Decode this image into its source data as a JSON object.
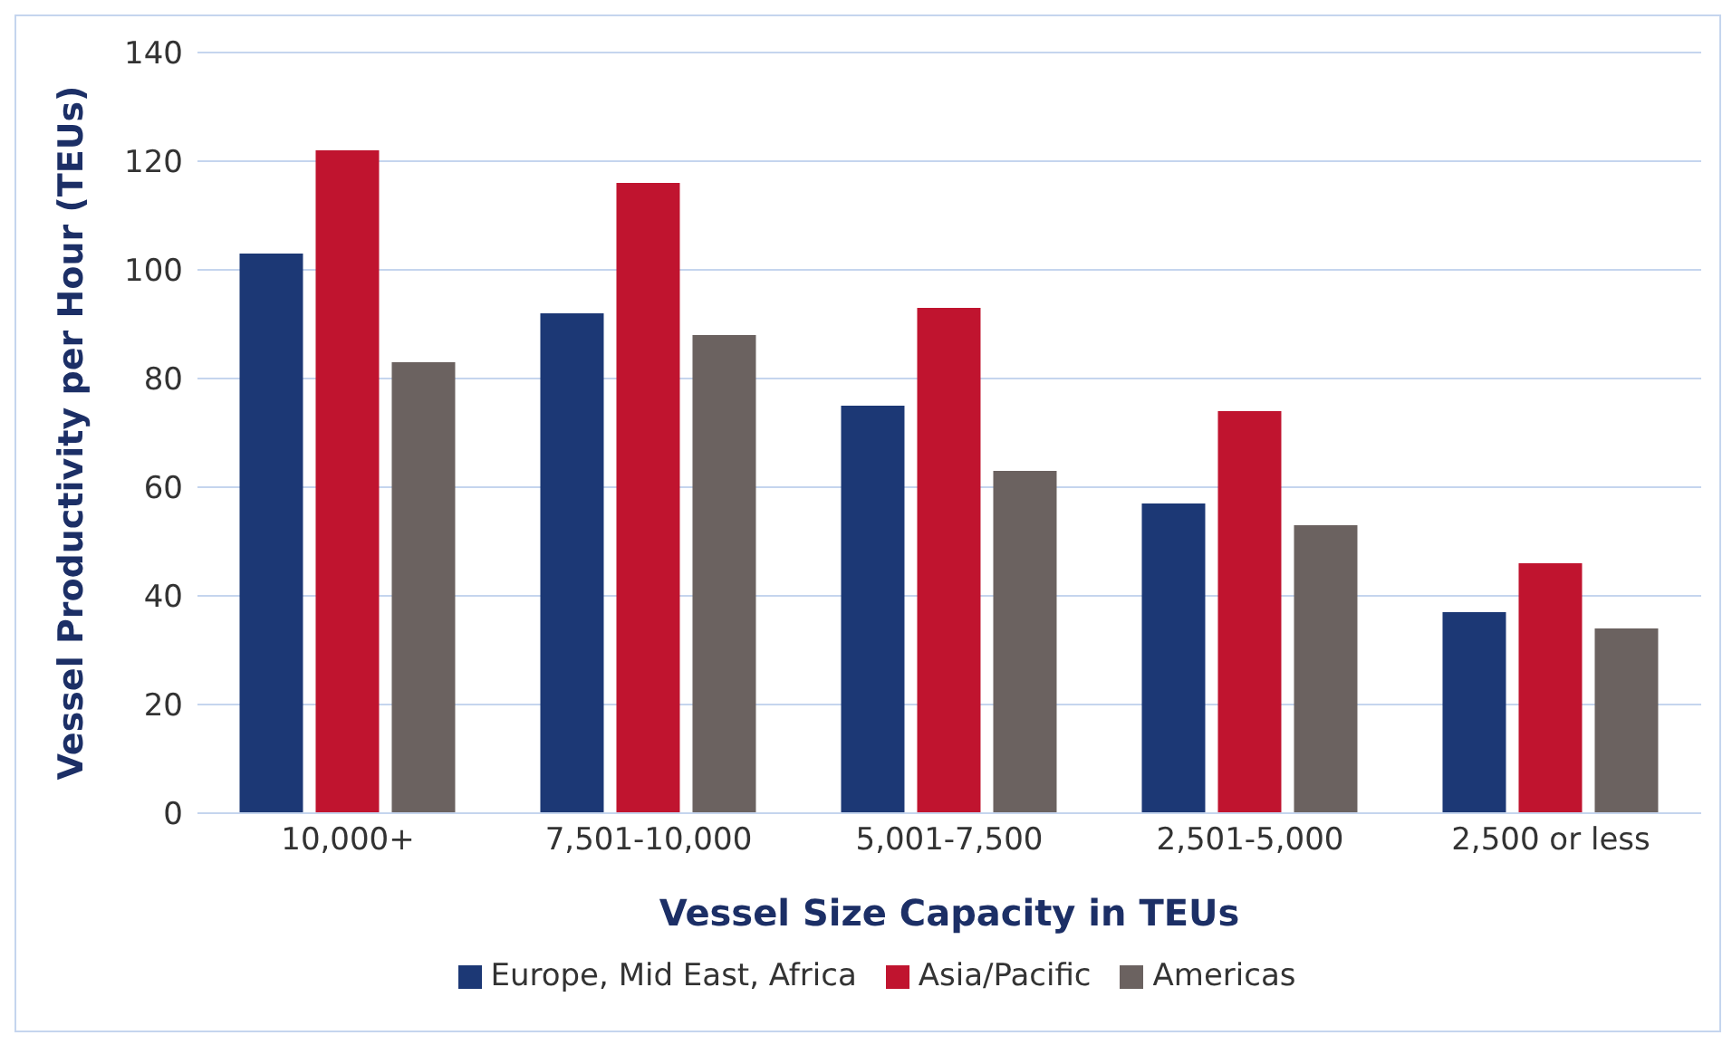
{
  "chart_data": {
    "type": "bar",
    "xlabel": "Vessel Size Capacity in TEUs",
    "ylabel": "Vessel Productivity per Hour (TEUs)",
    "categories": [
      "10,000+",
      "7,501-10,000",
      "5,001-7,500",
      "2,501-5,000",
      "2,500 or less"
    ],
    "series": [
      {
        "name": "Europe, Mid East, Africa",
        "color": "#1c3875",
        "values": [
          103,
          92,
          75,
          57,
          37
        ]
      },
      {
        "name": "Asia/Pacific",
        "color": "#c0142f",
        "values": [
          122,
          116,
          93,
          74,
          46
        ]
      },
      {
        "name": "Americas",
        "color": "#6b6260",
        "values": [
          83,
          88,
          63,
          53,
          34
        ]
      }
    ],
    "ylim": [
      0,
      140
    ],
    "yticks": [
      0,
      20,
      40,
      60,
      80,
      100,
      120,
      140
    ],
    "grid": "y",
    "legend": "bottom"
  }
}
